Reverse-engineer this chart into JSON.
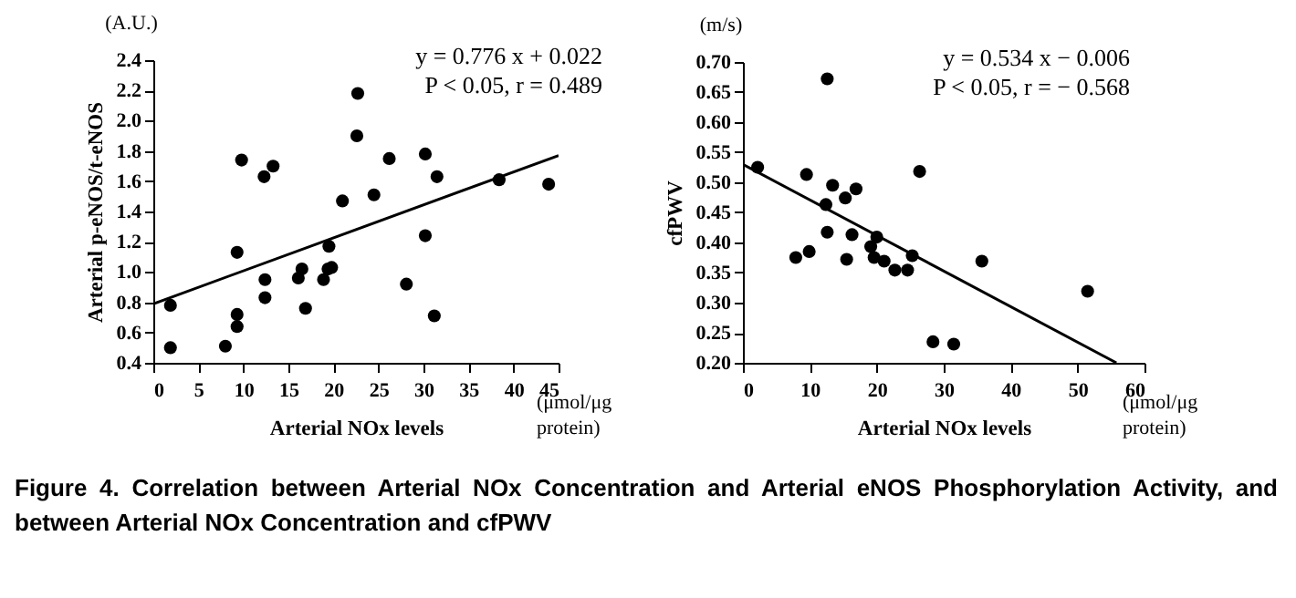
{
  "chart_data": [
    {
      "type": "scatter",
      "xlabel": "Arterial  NOx levels",
      "ylabel": "Arterial p-eNOS/t-eNOS",
      "annotations": [
        "y = 0.776 x + 0.022",
        "P < 0.05, r = 0.489",
        "(A.U.)",
        "(μmol/μg protein)"
      ],
      "xlim": [
        0,
        45
      ],
      "xticks": [
        0,
        5,
        10,
        15,
        20,
        25,
        30,
        35,
        40,
        45
      ],
      "ylim": [
        0.4,
        2.4
      ],
      "yticks": [
        0.4,
        0.6,
        0.8,
        {
          "value": 1,
          "label": "1.0"
        },
        1.2,
        1.4,
        1.6,
        1.8,
        {
          "value": 2,
          "label": "2.0"
        },
        2.2,
        2.4
      ],
      "grid": false,
      "series": [
        {
          "marker": "circle",
          "color": "#000000",
          "x": [
            1.9,
            1.9,
            8.0,
            9.3,
            9.3,
            9.3,
            9.8,
            12.3,
            13.3,
            12.4,
            12.4,
            16.1,
            16.5,
            16.9,
            18.9,
            19.4,
            19.5,
            19.8,
            21.0,
            22.7,
            22.6,
            24.5,
            26.2,
            28.1,
            30.2,
            30.2,
            31.2,
            31.5,
            38.4,
            43.9
          ],
          "values": [
            0.78,
            0.5,
            0.51,
            0.72,
            0.64,
            1.13,
            1.74,
            1.63,
            1.7,
            0.95,
            0.83,
            0.96,
            1.02,
            0.76,
            0.95,
            1.02,
            1.17,
            1.03,
            1.47,
            2.18,
            1.9,
            1.51,
            1.75,
            0.92,
            1.78,
            1.24,
            0.71,
            1.63,
            1.61,
            1.58
          ]
        },
        {
          "type": "line",
          "marker": "none",
          "color": "#000000",
          "x": [
            0,
            45
          ],
          "values": [
            0.79,
            1.77
          ]
        }
      ]
    },
    {
      "type": "scatter",
      "xlabel": "Arterial  NOx levels",
      "ylabel": "cfPWV",
      "annotations": [
        "y = 0.534 x  −  0.006",
        "P < 0.05, r =  − 0.568",
        "(m/s)",
        "(μmol/μg protein)",
        "Figure 4. Correlation between Arterial NOx Concentration and Arterial eNOS Phosphorylation Activity, and between Arterial NOx Concentration and cfPWV"
      ],
      "xlim": [
        0,
        60
      ],
      "xticks": [
        0,
        10,
        20,
        30,
        40,
        50,
        60
      ],
      "ylim": [
        0.2,
        0.7
      ],
      "yticks": [
        {
          "value": 0.2,
          "label": "0.20"
        },
        0.25,
        {
          "value": 0.3,
          "label": "0.30"
        },
        0.35,
        {
          "value": 0.4,
          "label": "0.40"
        },
        0.45,
        {
          "value": 0.5,
          "label": "0.50"
        },
        0.55,
        {
          "value": 0.6,
          "label": "0.60"
        },
        0.65,
        {
          "value": 0.7,
          "label": "0.70"
        }
      ],
      "grid": false,
      "series": [
        {
          "marker": "circle",
          "color": "#000000",
          "x": [
            2.2,
            7.9,
            9.9,
            9.5,
            12.4,
            12.6,
            12.6,
            13.4,
            15.3,
            15.5,
            16.3,
            16.9,
            19.1,
            19.6,
            20.0,
            21.1,
            22.7,
            24.6,
            25.3,
            26.4,
            28.4,
            31.5,
            35.7,
            51.5
          ],
          "values": [
            0.525,
            0.375,
            0.385,
            0.513,
            0.463,
            0.672,
            0.417,
            0.495,
            0.474,
            0.372,
            0.413,
            0.489,
            0.393,
            0.375,
            0.409,
            0.369,
            0.354,
            0.354,
            0.378,
            0.518,
            0.235,
            0.231,
            0.369,
            0.319
          ]
        },
        {
          "type": "line",
          "marker": "none",
          "color": "#000000",
          "x": [
            0,
            55.8
          ],
          "values": [
            0.53,
            0.2
          ]
        }
      ]
    }
  ]
}
